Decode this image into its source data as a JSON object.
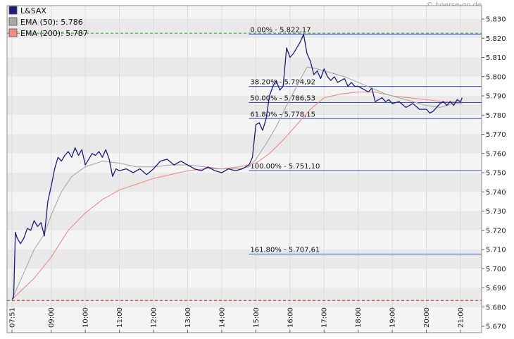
{
  "watermark": "© boerse-go.de",
  "colors": {
    "price": "#1c1c78",
    "ema50": "#a8a8a8",
    "ema200": "#f08c84",
    "fib": "#3a4fc0",
    "ref_high": "#2e9a2e",
    "ref_low": "#c03030",
    "band_a": "#f4f4f4",
    "band_b": "#e9e9e9"
  },
  "legend": [
    {
      "label": "L&SAX",
      "color": "#1c1c78"
    },
    {
      "label": "EMA (50): 5.786",
      "color": "#a8a8a8"
    },
    {
      "label": "EMA (200): 5.787",
      "color": "#f08c84"
    }
  ],
  "chart_data": {
    "type": "line",
    "title": "",
    "xlabel": "",
    "ylabel": "",
    "ylim": [
      5.67,
      5.833
    ],
    "grid": true,
    "legend_placement": "top-left",
    "y_ticks": [
      "5.830",
      "5.820",
      "5.810",
      "5.800",
      "5.790",
      "5.780",
      "5.770",
      "5.760",
      "5.750",
      "5.740",
      "5.730",
      "5.720",
      "5.710",
      "5.700",
      "5.690",
      "5.680",
      "5.670"
    ],
    "x_ticks": [
      {
        "label": "07:51",
        "t": 7.85
      },
      {
        "label": "09:00",
        "t": 9.0
      },
      {
        "label": "10:00",
        "t": 10.0
      },
      {
        "label": "11:00",
        "t": 11.0
      },
      {
        "label": "12:00",
        "t": 12.0
      },
      {
        "label": "13:00",
        "t": 13.0
      },
      {
        "label": "14:00",
        "t": 14.0
      },
      {
        "label": "15:00",
        "t": 15.0
      },
      {
        "label": "16:00",
        "t": 16.0
      },
      {
        "label": "17:00",
        "t": 17.0
      },
      {
        "label": "18:00",
        "t": 18.0
      },
      {
        "label": "19:00",
        "t": 19.0
      },
      {
        "label": "20:00",
        "t": 20.0
      },
      {
        "label": "21:00",
        "t": 21.0
      }
    ],
    "x_range": [
      7.85,
      21.2
    ],
    "series": [
      {
        "name": "L&SAX",
        "values": [
          [
            7.85,
            5.684
          ],
          [
            7.9,
            5.685
          ],
          [
            7.95,
            5.719
          ],
          [
            8.0,
            5.716
          ],
          [
            8.1,
            5.713
          ],
          [
            8.2,
            5.716
          ],
          [
            8.3,
            5.721
          ],
          [
            8.4,
            5.72
          ],
          [
            8.5,
            5.725
          ],
          [
            8.6,
            5.722
          ],
          [
            8.7,
            5.724
          ],
          [
            8.8,
            5.717
          ],
          [
            8.9,
            5.735
          ],
          [
            9.0,
            5.743
          ],
          [
            9.1,
            5.752
          ],
          [
            9.2,
            5.758
          ],
          [
            9.3,
            5.756
          ],
          [
            9.4,
            5.759
          ],
          [
            9.5,
            5.761
          ],
          [
            9.6,
            5.758
          ],
          [
            9.7,
            5.763
          ],
          [
            9.8,
            5.759
          ],
          [
            9.9,
            5.762
          ],
          [
            10.0,
            5.754
          ],
          [
            10.1,
            5.757
          ],
          [
            10.2,
            5.76
          ],
          [
            10.3,
            5.759
          ],
          [
            10.4,
            5.761
          ],
          [
            10.5,
            5.758
          ],
          [
            10.6,
            5.762
          ],
          [
            10.7,
            5.757
          ],
          [
            10.8,
            5.748
          ],
          [
            10.9,
            5.752
          ],
          [
            11.0,
            5.751
          ],
          [
            11.2,
            5.752
          ],
          [
            11.4,
            5.75
          ],
          [
            11.6,
            5.752
          ],
          [
            11.8,
            5.749
          ],
          [
            12.0,
            5.752
          ],
          [
            12.2,
            5.756
          ],
          [
            12.4,
            5.757
          ],
          [
            12.6,
            5.754
          ],
          [
            12.8,
            5.756
          ],
          [
            13.0,
            5.754
          ],
          [
            13.2,
            5.752
          ],
          [
            13.4,
            5.751
          ],
          [
            13.6,
            5.753
          ],
          [
            13.8,
            5.751
          ],
          [
            14.0,
            5.75
          ],
          [
            14.2,
            5.752
          ],
          [
            14.4,
            5.751
          ],
          [
            14.6,
            5.752
          ],
          [
            14.8,
            5.754
          ],
          [
            14.9,
            5.758
          ],
          [
            15.0,
            5.775
          ],
          [
            15.1,
            5.776
          ],
          [
            15.2,
            5.772
          ],
          [
            15.3,
            5.778
          ],
          [
            15.4,
            5.79
          ],
          [
            15.5,
            5.795
          ],
          [
            15.6,
            5.798
          ],
          [
            15.7,
            5.793
          ],
          [
            15.8,
            5.795
          ],
          [
            15.9,
            5.815
          ],
          [
            16.0,
            5.81
          ],
          [
            16.1,
            5.812
          ],
          [
            16.2,
            5.815
          ],
          [
            16.3,
            5.818
          ],
          [
            16.4,
            5.822
          ],
          [
            16.5,
            5.812
          ],
          [
            16.6,
            5.808
          ],
          [
            16.7,
            5.801
          ],
          [
            16.8,
            5.803
          ],
          [
            16.9,
            5.799
          ],
          [
            17.0,
            5.804
          ],
          [
            17.1,
            5.8
          ],
          [
            17.2,
            5.798
          ],
          [
            17.3,
            5.8
          ],
          [
            17.4,
            5.797
          ],
          [
            17.5,
            5.798
          ],
          [
            17.6,
            5.799
          ],
          [
            17.7,
            5.795
          ],
          [
            17.8,
            5.797
          ],
          [
            17.9,
            5.795
          ],
          [
            18.0,
            5.795
          ],
          [
            18.1,
            5.794
          ],
          [
            18.2,
            5.793
          ],
          [
            18.3,
            5.792
          ],
          [
            18.4,
            5.794
          ],
          [
            18.5,
            5.787
          ],
          [
            18.6,
            5.788
          ],
          [
            18.7,
            5.789
          ],
          [
            18.8,
            5.787
          ],
          [
            18.9,
            5.788
          ],
          [
            19.0,
            5.786
          ],
          [
            19.2,
            5.787
          ],
          [
            19.4,
            5.784
          ],
          [
            19.6,
            5.786
          ],
          [
            19.8,
            5.783
          ],
          [
            20.0,
            5.783
          ],
          [
            20.1,
            5.781
          ],
          [
            20.2,
            5.782
          ],
          [
            20.3,
            5.784
          ],
          [
            20.4,
            5.786
          ],
          [
            20.5,
            5.787
          ],
          [
            20.6,
            5.785
          ],
          [
            20.7,
            5.787
          ],
          [
            20.8,
            5.785
          ],
          [
            20.9,
            5.788
          ],
          [
            21.0,
            5.787
          ],
          [
            21.05,
            5.789
          ]
        ]
      },
      {
        "name": "EMA (50)",
        "values": [
          [
            7.85,
            5.684
          ],
          [
            8.2,
            5.698
          ],
          [
            8.5,
            5.71
          ],
          [
            8.8,
            5.718
          ],
          [
            9.0,
            5.728
          ],
          [
            9.3,
            5.74
          ],
          [
            9.6,
            5.748
          ],
          [
            10.0,
            5.753
          ],
          [
            10.5,
            5.756
          ],
          [
            11.0,
            5.755
          ],
          [
            11.5,
            5.753
          ],
          [
            12.0,
            5.753
          ],
          [
            12.5,
            5.754
          ],
          [
            13.0,
            5.754
          ],
          [
            13.5,
            5.753
          ],
          [
            14.0,
            5.752
          ],
          [
            14.5,
            5.752
          ],
          [
            14.8,
            5.753
          ],
          [
            15.0,
            5.757
          ],
          [
            15.3,
            5.765
          ],
          [
            15.6,
            5.774
          ],
          [
            15.9,
            5.785
          ],
          [
            16.2,
            5.795
          ],
          [
            16.5,
            5.805
          ],
          [
            16.8,
            5.804
          ],
          [
            17.2,
            5.802
          ],
          [
            17.6,
            5.8
          ],
          [
            18.0,
            5.797
          ],
          [
            18.4,
            5.794
          ],
          [
            18.8,
            5.791
          ],
          [
            19.2,
            5.789
          ],
          [
            19.6,
            5.787
          ],
          [
            20.0,
            5.785
          ],
          [
            20.4,
            5.784
          ],
          [
            20.8,
            5.786
          ],
          [
            21.05,
            5.786
          ]
        ]
      },
      {
        "name": "EMA (200)",
        "values": [
          [
            7.85,
            5.684
          ],
          [
            8.5,
            5.695
          ],
          [
            9.0,
            5.706
          ],
          [
            9.5,
            5.72
          ],
          [
            10.0,
            5.729
          ],
          [
            10.5,
            5.736
          ],
          [
            11.0,
            5.741
          ],
          [
            11.5,
            5.744
          ],
          [
            12.0,
            5.747
          ],
          [
            12.5,
            5.749
          ],
          [
            13.0,
            5.751
          ],
          [
            13.5,
            5.752
          ],
          [
            14.0,
            5.752
          ],
          [
            14.5,
            5.753
          ],
          [
            15.0,
            5.755
          ],
          [
            15.4,
            5.76
          ],
          [
            15.8,
            5.767
          ],
          [
            16.2,
            5.775
          ],
          [
            16.6,
            5.783
          ],
          [
            17.0,
            5.789
          ],
          [
            17.5,
            5.791
          ],
          [
            18.0,
            5.792
          ],
          [
            18.5,
            5.792
          ],
          [
            19.0,
            5.79
          ],
          [
            19.5,
            5.789
          ],
          [
            20.0,
            5.788
          ],
          [
            20.5,
            5.787
          ],
          [
            21.05,
            5.787
          ]
        ]
      }
    ],
    "reference_lines": [
      {
        "y": 5.8226,
        "style": "dashed",
        "color": "#2e9a2e"
      },
      {
        "y": 5.6835,
        "style": "dashed",
        "color": "#c03030"
      }
    ],
    "fib_start": 15.0,
    "fib_levels": [
      {
        "label": "0.00% - 5.822,17",
        "y": 5.82217
      },
      {
        "label": "38.20% - 5.794,92",
        "y": 5.79492
      },
      {
        "label": "50.00% - 5.786,53",
        "y": 5.78653
      },
      {
        "label": "61.80% - 5.778,15",
        "y": 5.77815
      },
      {
        "label": "100.00% - 5.751,10",
        "y": 5.7511
      },
      {
        "label": "161.80% - 5.707,61",
        "y": 5.70761
      }
    ]
  }
}
